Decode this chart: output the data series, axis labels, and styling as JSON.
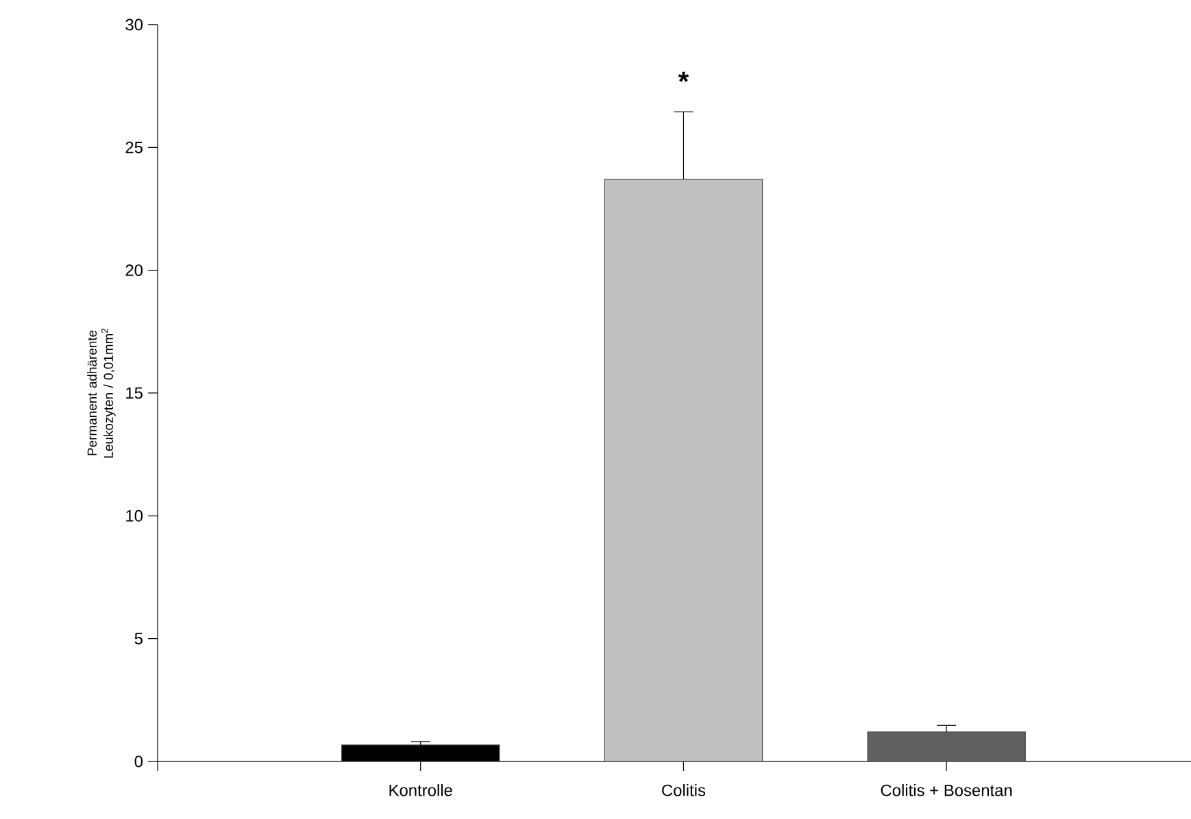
{
  "chart_data": {
    "type": "bar",
    "categories": [
      "Kontrolle",
      "Colitis",
      "Colitis + Bosentan"
    ],
    "values": [
      0.67,
      23.7,
      1.2
    ],
    "colors": [
      "#000000",
      "#c0c0c0",
      "#606060"
    ],
    "errors": [
      [
        0.67,
        0.81
      ],
      [
        23.7,
        26.45
      ],
      [
        1.2,
        1.47
      ]
    ],
    "ylabel": "Permanent adhärente Leukozyten / 0,01mm$^{2}$",
    "ylim": [
      0,
      30
    ],
    "yticks": [
      0,
      5,
      10,
      15,
      20,
      25,
      30
    ],
    "annotations": [
      "*"
    ]
  }
}
